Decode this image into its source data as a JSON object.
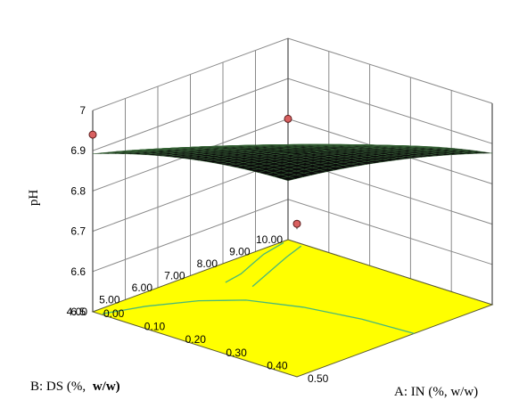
{
  "chart_data": {
    "type": "surface3d",
    "title": "",
    "zlabel": "pH",
    "xlabel_a": "A: IN (%, w/w)",
    "ylabel_b_prefix": "B: DS (%,",
    "ylabel_b_bold": "w/w)",
    "z_ticks": [
      "6.5",
      "6.6",
      "6.7",
      "6.8",
      "6.9",
      "7"
    ],
    "a_ticks": [
      "0.00",
      "0.10",
      "0.20",
      "0.30",
      "0.40",
      "0.50"
    ],
    "b_ticks": [
      "4.00",
      "5.00",
      "6.00",
      "7.00",
      "8.00",
      "9.00",
      "10.00"
    ],
    "a_range": [
      0,
      0.5
    ],
    "b_range": [
      4,
      10
    ],
    "z_range": [
      6.5,
      7.0
    ],
    "floor_color": "#ffff00",
    "contour_color": "#48b87a",
    "surface_color": "#0a0a0a",
    "surface_mesh_color": "#3a6a3a",
    "point_color": "#d96060",
    "design_points": [
      {
        "a": 0.5,
        "b": 4.0,
        "ph": 6.88
      },
      {
        "a": 0.0,
        "b": 10.0,
        "ph": 6.8
      },
      {
        "a": 0.0,
        "b": 4.0,
        "ph": 6.94
      }
    ]
  }
}
